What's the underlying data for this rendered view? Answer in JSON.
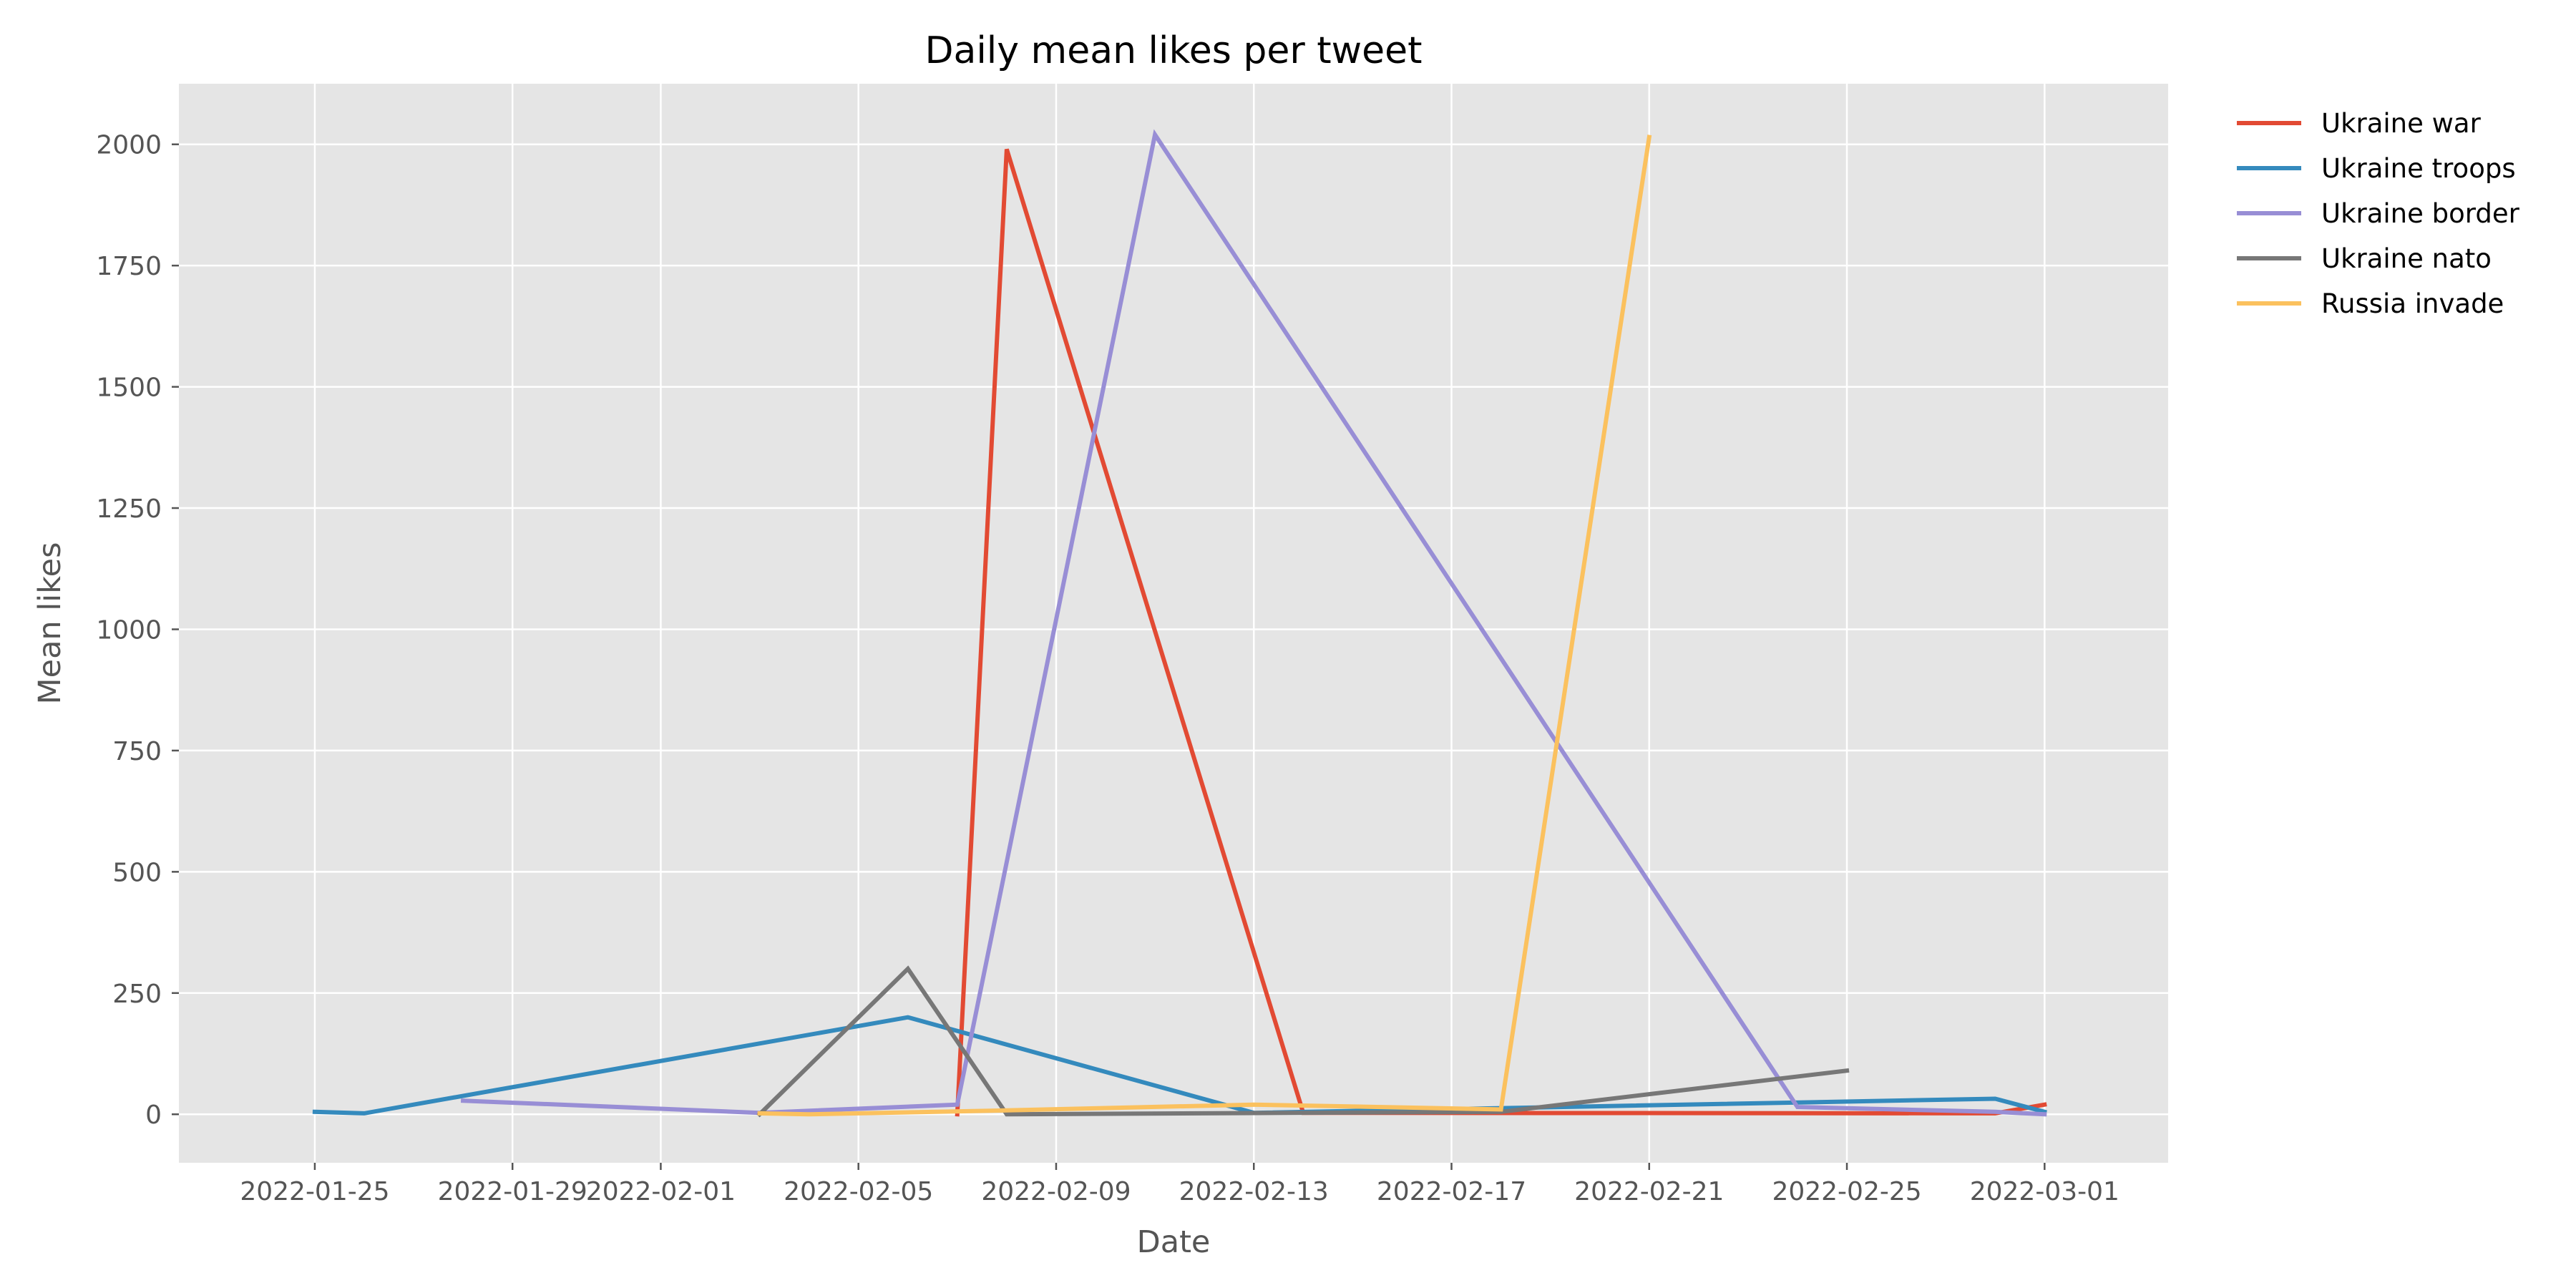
{
  "chart_data": {
    "type": "line",
    "title": "Daily mean likes per tweet",
    "xlabel": "Date",
    "ylabel": "Mean likes",
    "x_axis": "date",
    "xlim": [
      "2022-01-22T06:00",
      "2022-03-03T12:00"
    ],
    "ylim": [
      -100,
      2125
    ],
    "xticks": [
      "2022-01-25",
      "2022-01-29",
      "2022-02-01",
      "2022-02-05",
      "2022-02-09",
      "2022-02-13",
      "2022-02-17",
      "2022-02-21",
      "2022-02-25",
      "2022-03-01"
    ],
    "yticks": [
      0,
      250,
      500,
      750,
      1000,
      1250,
      1500,
      1750,
      2000
    ],
    "grid": true,
    "legend_position": "outside-top-right",
    "style": {
      "background": "#e5e5e5",
      "grid_color": "#ffffff"
    },
    "series": [
      {
        "name": "Ukraine war",
        "color": "#e24a33",
        "points": [
          [
            "2022-02-07",
            0
          ],
          [
            "2022-02-08",
            1990
          ],
          [
            "2022-02-14",
            3
          ],
          [
            "2022-02-28",
            2
          ],
          [
            "2022-03-01",
            20
          ]
        ]
      },
      {
        "name": "Ukraine troops",
        "color": "#348abd",
        "points": [
          [
            "2022-01-25",
            5
          ],
          [
            "2022-01-26",
            2
          ],
          [
            "2022-02-06",
            200
          ],
          [
            "2022-02-13",
            3
          ],
          [
            "2022-02-28",
            32
          ],
          [
            "2022-03-01",
            5
          ]
        ]
      },
      {
        "name": "Ukraine border",
        "color": "#988ed5",
        "points": [
          [
            "2022-01-28",
            28
          ],
          [
            "2022-02-03",
            3
          ],
          [
            "2022-02-07",
            20
          ],
          [
            "2022-02-11",
            2020
          ],
          [
            "2022-02-24",
            15
          ],
          [
            "2022-02-28",
            5
          ],
          [
            "2022-03-01",
            0
          ]
        ]
      },
      {
        "name": "Ukraine nato",
        "color": "#777777",
        "points": [
          [
            "2022-02-03",
            0
          ],
          [
            "2022-02-06",
            300
          ],
          [
            "2022-02-08",
            0
          ],
          [
            "2022-02-18",
            5
          ],
          [
            "2022-02-25",
            90
          ]
        ]
      },
      {
        "name": "Russia invade",
        "color": "#fbc15e",
        "points": [
          [
            "2022-02-03",
            2
          ],
          [
            "2022-02-04",
            0
          ],
          [
            "2022-02-08",
            8
          ],
          [
            "2022-02-13",
            20
          ],
          [
            "2022-02-18",
            10
          ],
          [
            "2022-02-21",
            2015
          ]
        ]
      }
    ]
  }
}
